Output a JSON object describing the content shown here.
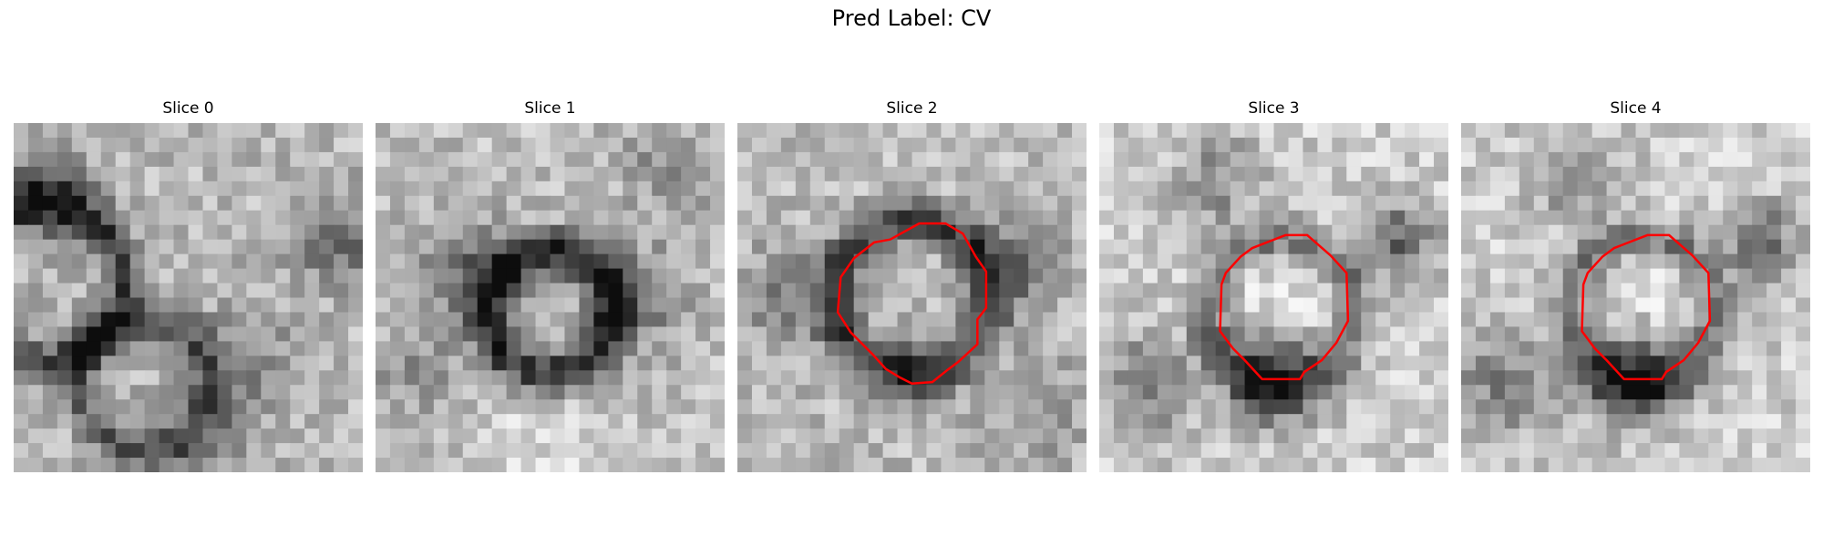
{
  "figure": {
    "suptitle": "Pred Label: CV"
  },
  "panels": [
    {
      "title": "Slice 0",
      "has_contour": false
    },
    {
      "title": "Slice 1",
      "has_contour": false
    },
    {
      "title": "Slice 2",
      "has_contour": true
    },
    {
      "title": "Slice 3",
      "has_contour": true
    },
    {
      "title": "Slice 4",
      "has_contour": true
    }
  ],
  "colors": {
    "contour": "#ff0000",
    "background": "#ffffff"
  }
}
